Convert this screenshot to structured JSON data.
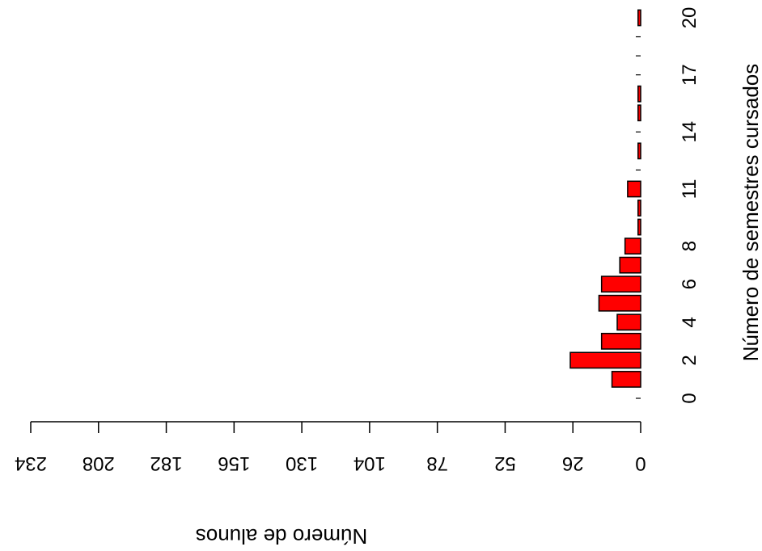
{
  "chart_data": {
    "type": "bar",
    "orientation": "horizontal",
    "xlabel": "Número de alunos",
    "ylabel": "Número de semestres cursados",
    "x_reversed": true,
    "xlim": [
      0,
      234
    ],
    "xticks": [
      0,
      26,
      52,
      78,
      104,
      130,
      156,
      182,
      208,
      234
    ],
    "ylim": [
      0,
      20
    ],
    "yticks": [
      0,
      2,
      4,
      6,
      8,
      11,
      14,
      17,
      20
    ],
    "categories": [
      0,
      1,
      2,
      3,
      4,
      5,
      6,
      7,
      8,
      9,
      10,
      11,
      12,
      13,
      14,
      15,
      16,
      17,
      18,
      19,
      20
    ],
    "values": [
      0,
      11,
      27,
      15,
      9,
      16,
      15,
      8,
      6,
      1,
      1,
      5,
      0,
      1,
      0,
      1,
      1,
      0,
      0,
      0,
      1
    ],
    "bar_color": "#ff0000",
    "bar_edge_color": "#000000",
    "grid": false
  }
}
